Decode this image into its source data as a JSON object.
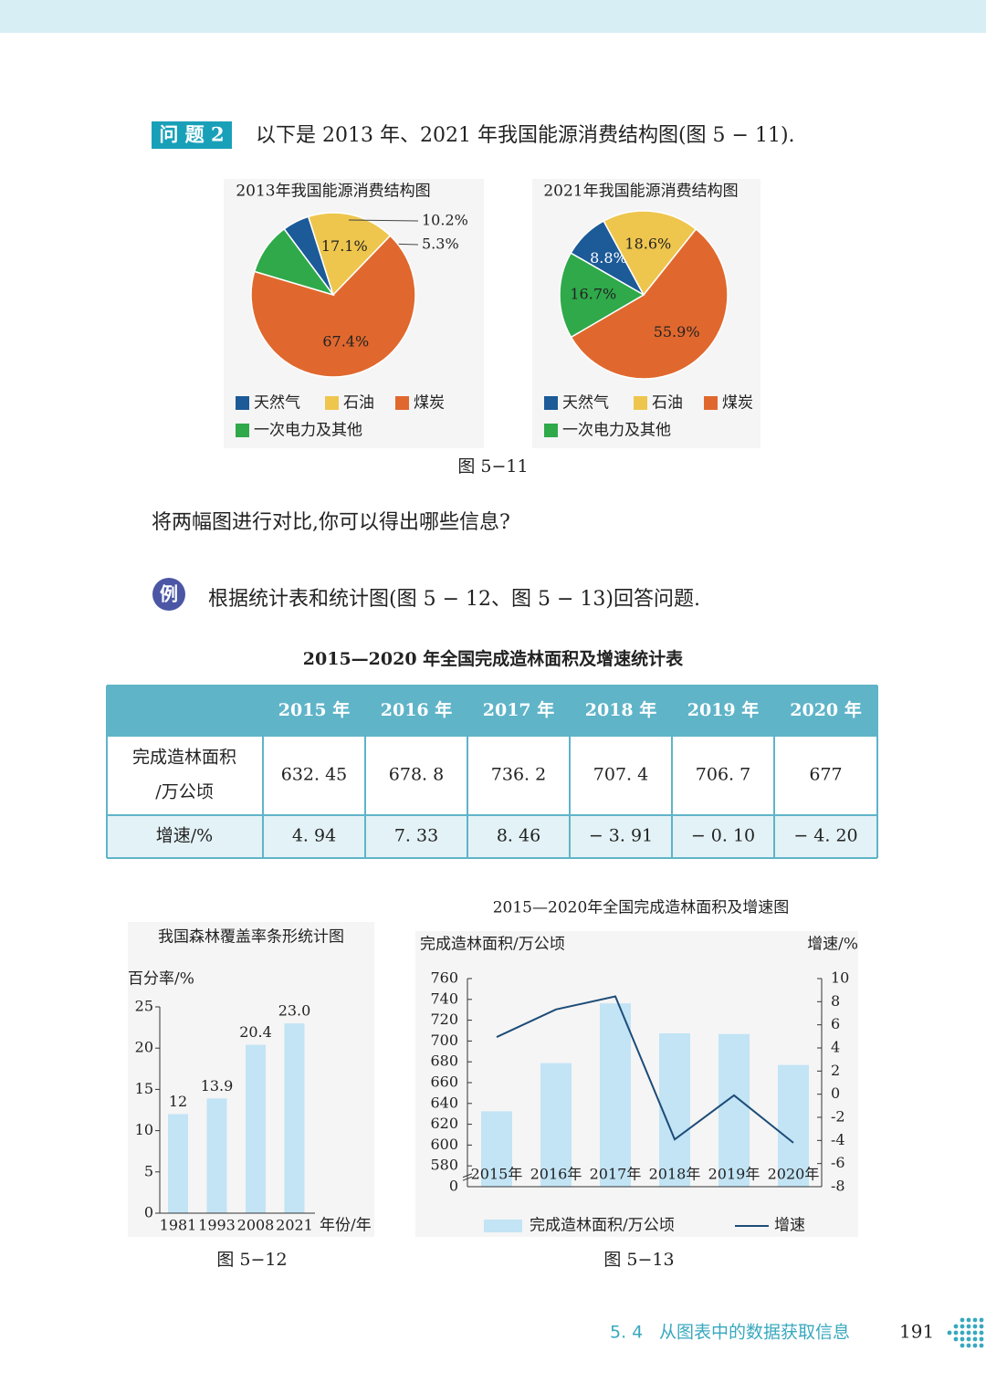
{
  "question": {
    "label": "问 题 2",
    "text": "以下是 2013 年、2021 年我国能源消费结构图(图 5 − 11).",
    "figure_caption": "图 5−11",
    "prompt": "将两幅图进行对比,你可以得出哪些信息?"
  },
  "example": {
    "label": "例",
    "text": "根据统计表和统计图(图 5 − 12、图 5 − 13)回答问题."
  },
  "table": {
    "title": "2015—2020 年全国完成造林面积及增速统计表",
    "header": [
      "2015 年",
      "2016 年",
      "2017 年",
      "2018 年",
      "2019 年",
      "2020 年"
    ],
    "rows": [
      {
        "label": [
          "完成造林面积",
          "/万公顷"
        ],
        "cells": [
          "632. 45",
          "678. 8",
          "736. 2",
          "707. 4",
          "706. 7",
          "677"
        ]
      },
      {
        "label": [
          "增速/%"
        ],
        "cells": [
          "4. 94",
          "7. 33",
          "8. 46",
          "− 3. 91",
          "− 0. 10",
          "− 4. 20"
        ]
      }
    ]
  },
  "chart_data": [
    {
      "type": "pie",
      "title": "2013年我国能源消费结构图",
      "categories": [
        "天然气",
        "石油",
        "煤炭",
        "一次电力及其他"
      ],
      "values": [
        5.3,
        17.1,
        67.4,
        10.2
      ],
      "value_labels": [
        "5.3%",
        "17.1%",
        "67.4%",
        "10.2%"
      ],
      "colors": [
        "#1c5a98",
        "#eec64e",
        "#e0682e",
        "#2fa94a"
      ]
    },
    {
      "type": "pie",
      "title": "2021年我国能源消费结构图",
      "categories": [
        "天然气",
        "石油",
        "煤炭",
        "一次电力及其他"
      ],
      "values": [
        8.8,
        18.6,
        55.9,
        16.7
      ],
      "value_labels": [
        "8.8%",
        "18.6%",
        "55.9%",
        "16.7%"
      ],
      "colors": [
        "#1c5a98",
        "#eec64e",
        "#e0682e",
        "#2fa94a"
      ]
    },
    {
      "type": "bar",
      "title": "我国森林覆盖率条形统计图",
      "y_label": "百分率/%",
      "x_label": "年份/年",
      "caption": "图 5−12",
      "categories": [
        "1981",
        "1993",
        "2008",
        "2021"
      ],
      "values": [
        12,
        13.9,
        20.4,
        23.0
      ],
      "value_labels": [
        "12",
        "13.9",
        "20.4",
        "23.0"
      ],
      "color": "#c2e4f5",
      "ylim": [
        0,
        25
      ],
      "yticks": [
        0,
        5,
        10,
        15,
        20,
        25
      ]
    },
    {
      "type": "combo",
      "title": "2015—2020年全国完成造林面积及增速图",
      "y_label": "完成造林面积/万公顷",
      "y2_label": "增速/%",
      "caption": "图 5−13",
      "categories": [
        "2015年",
        "2016年",
        "2017年",
        "2018年",
        "2019年",
        "2020年"
      ],
      "series": [
        {
          "name": "完成造林面积/万公顷",
          "type": "bar",
          "color": "#c2e4f5",
          "values": [
            632.45,
            678.8,
            736.2,
            707.4,
            706.7,
            677
          ]
        },
        {
          "name": "增速",
          "type": "line",
          "axis": "y2",
          "color": "#1d4c78",
          "values": [
            4.94,
            7.33,
            8.46,
            -3.91,
            -0.1,
            -4.2
          ]
        }
      ],
      "ylim": [
        0,
        760
      ],
      "y_break": [
        0,
        580
      ],
      "yticks": [
        0,
        580,
        600,
        620,
        640,
        660,
        680,
        700,
        720,
        740,
        760
      ],
      "y2lim": [
        -8,
        10
      ],
      "y2ticks": [
        -8,
        -6,
        -4,
        -2,
        0,
        2,
        4,
        6,
        8,
        10
      ]
    }
  ],
  "footer": {
    "section": "5. 4",
    "title": "从图表中的数据获取信息",
    "page": "191"
  }
}
